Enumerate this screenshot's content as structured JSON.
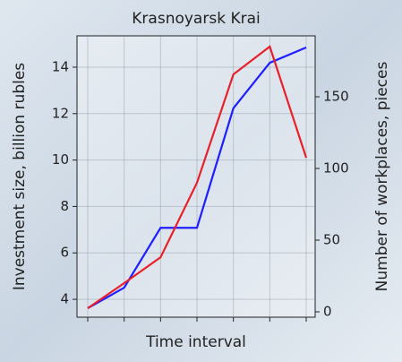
{
  "chart_data": {
    "type": "line",
    "title": "Krasnoyarsk Krai",
    "x_label": "Time interval",
    "y_label": "Investment size, billion rubles",
    "y2_label": "Number of workplaces, pieces",
    "categories": [
      null,
      null,
      null,
      null,
      null,
      null,
      null
    ],
    "series": [
      {
        "color": "#1f1fff",
        "values": [
          3.62,
          4.5,
          7.08,
          7.08,
          12.23,
          14.19,
          14.85
        ]
      },
      {
        "color": "#e8202a",
        "axis": "y2",
        "values": [
          2.5,
          20,
          38,
          90,
          165.6,
          185,
          107.5
        ]
      }
    ],
    "ylim": [
      3.23,
      15.35
    ],
    "yticks": [
      4,
      6,
      8,
      10,
      12,
      14
    ],
    "y2lim": [
      -3.75,
      192.5
    ],
    "y2ticks": [
      0,
      50,
      100,
      150
    ],
    "grid": true
  }
}
